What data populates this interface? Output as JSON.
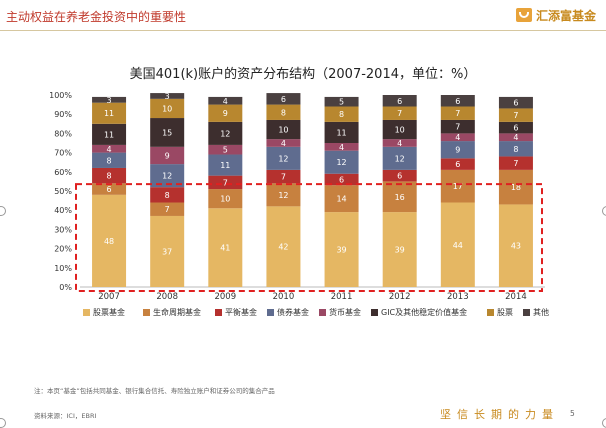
{
  "header": {
    "title": "主动权益在养老金投资中的重要性",
    "brand": "汇添富基金"
  },
  "chart_data": {
    "type": "bar",
    "stacked": true,
    "title": "美国401(k)账户的资产分布结构（2007-2014，单位：%）",
    "categories": [
      "2007",
      "2008",
      "2009",
      "2010",
      "2011",
      "2012",
      "2013",
      "2014"
    ],
    "ylim": [
      0,
      100
    ],
    "yticks": [
      "0%",
      "10%",
      "20%",
      "30%",
      "40%",
      "50%",
      "60%",
      "70%",
      "80%",
      "90%",
      "100%"
    ],
    "legend_position": "bottom",
    "series": [
      {
        "name": "股票基金",
        "color": "#e5b763",
        "values": [
          48,
          37,
          41,
          42,
          39,
          39,
          44,
          43
        ]
      },
      {
        "name": "生命周期基金",
        "color": "#c7813f",
        "values": [
          6,
          7,
          10,
          12,
          14,
          16,
          17,
          18
        ]
      },
      {
        "name": "平衡基金",
        "color": "#b5312e",
        "values": [
          8,
          8,
          7,
          7,
          6,
          6,
          6,
          7
        ]
      },
      {
        "name": "债券基金",
        "color": "#5f6c8f",
        "values": [
          8,
          12,
          11,
          12,
          12,
          12,
          9,
          8
        ]
      },
      {
        "name": "货币基金",
        "color": "#9a4864",
        "values": [
          4,
          9,
          5,
          4,
          4,
          4,
          4,
          4
        ]
      },
      {
        "name": "GIC及其他稳定价值基金",
        "color": "#3d2e2e",
        "values": [
          11,
          15,
          12,
          10,
          11,
          10,
          7,
          6
        ]
      },
      {
        "name": "股票",
        "color": "#b8872f",
        "values": [
          11,
          10,
          9,
          8,
          8,
          7,
          7,
          7
        ]
      },
      {
        "name": "其他",
        "color": "#4a4040",
        "values": [
          3,
          3,
          4,
          6,
          5,
          6,
          6,
          6
        ]
      }
    ],
    "display_labels": [
      [
        "48",
        "37",
        "41",
        "42",
        "39",
        "39",
        "44",
        "43"
      ],
      [
        "6",
        "7",
        "10",
        "12",
        "14",
        "16",
        "17",
        "18"
      ],
      [
        "8",
        "8",
        "7",
        "7",
        "6",
        "6",
        "6",
        "7"
      ],
      [
        "8",
        "12",
        "11",
        "12",
        "12",
        "12",
        "9",
        "8"
      ],
      [
        "4",
        "9",
        "5",
        "4",
        "4",
        "4",
        "4",
        "4"
      ],
      [
        "11",
        "15",
        "12",
        "10",
        "11",
        "10",
        "7",
        "6"
      ],
      [
        "11",
        "10",
        "9",
        "8",
        "8",
        "7",
        "7",
        "7"
      ],
      [
        "3",
        "3",
        "4",
        "6",
        "5",
        "6",
        "6",
        "6"
      ]
    ],
    "highlight_box": {
      "from_value": 0,
      "to_value": 52,
      "style": "dashed",
      "color": "#e02020"
    }
  },
  "footnote": "注：本页“基金”包括共同基金、银行集合信托、寿险独立账户和证券公司的集合产品",
  "source": "资料来源：ICI，EBRI",
  "slogan": "坚信长期的力量",
  "page_number": "5"
}
